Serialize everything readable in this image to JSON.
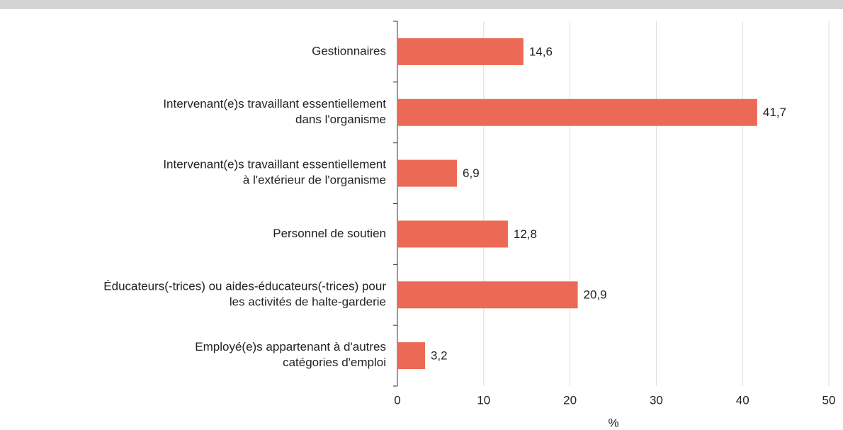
{
  "chart_data": {
    "type": "bar",
    "orientation": "horizontal",
    "categories": [
      "Gestionnaires",
      "Intervenant(e)s travaillant essentiellement\ndans l'organisme",
      "Intervenant(e)s travaillant essentiellement\nà l'extérieur de l'organisme",
      "Personnel de soutien",
      "Éducateurs(-trices) ou aides-éducateurs(-trices) pour\nles activités de halte-garderie",
      "Employé(e)s appartenant à d'autres\ncatégories d'emploi"
    ],
    "values": [
      14.6,
      41.7,
      6.9,
      12.8,
      20.9,
      3.2
    ],
    "value_labels": [
      "14,6",
      "41,7",
      "6,9",
      "12,8",
      "20,9",
      "3,2"
    ],
    "color": "#ec6a55",
    "x_label": "%",
    "xlim": [
      0,
      50
    ],
    "xticks": [
      0,
      10,
      20,
      30,
      40,
      50
    ],
    "grid": true
  }
}
